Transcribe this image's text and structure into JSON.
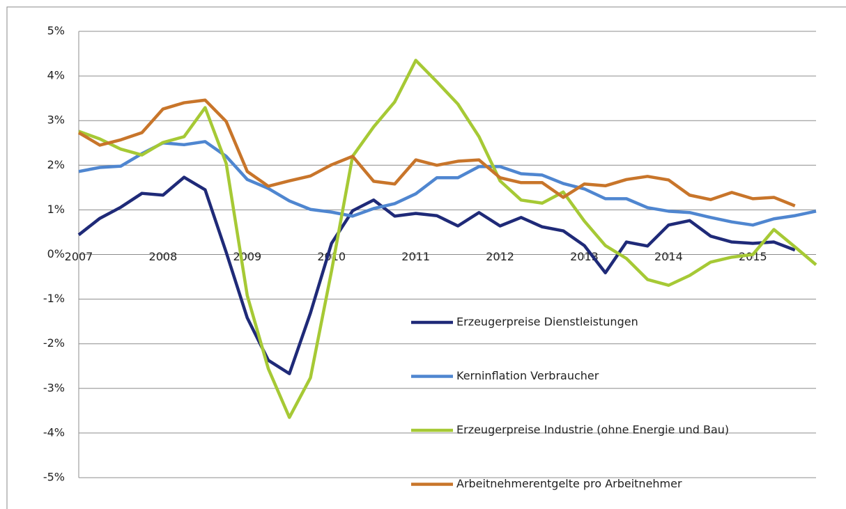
{
  "chart_data": {
    "type": "line",
    "x": [
      2007,
      2007.25,
      2007.5,
      2007.75,
      2008,
      2008.25,
      2008.5,
      2008.75,
      2009,
      2009.25,
      2009.5,
      2009.75,
      2010,
      2010.25,
      2010.5,
      2010.75,
      2011,
      2011.25,
      2011.5,
      2011.75,
      2012,
      2012.25,
      2012.5,
      2012.75,
      2013,
      2013.25,
      2013.5,
      2013.75,
      2014,
      2014.25,
      2014.5,
      2014.75,
      2015,
      2015.25,
      2015.5,
      2015.75
    ],
    "xlim": [
      2007,
      2015.75
    ],
    "xticks": [
      2007,
      2008,
      2009,
      2010,
      2011,
      2012,
      2013,
      2014,
      2015
    ],
    "ylim": [
      -5,
      5
    ],
    "yticks": [
      {
        "value": -5,
        "label": "-5%"
      },
      {
        "value": -4,
        "label": "-4%"
      },
      {
        "value": -3,
        "label": "-3%"
      },
      {
        "value": -2,
        "label": "-2%"
      },
      {
        "value": -1,
        "label": "-1%"
      },
      {
        "value": 0,
        "label": "0%"
      },
      {
        "value": 1,
        "label": "1%"
      },
      {
        "value": 2,
        "label": "2%"
      },
      {
        "value": 3,
        "label": "3%"
      },
      {
        "value": 4,
        "label": "4%"
      },
      {
        "value": 5,
        "label": "5%"
      }
    ],
    "grid": true,
    "legend": "inside-bottom",
    "series": [
      {
        "name": "Erzeugerpreise Dienstleistungen",
        "color": "#1f2a78",
        "values": [
          0.44,
          0.81,
          1.06,
          1.37,
          1.33,
          1.73,
          1.45,
          0.05,
          -1.42,
          -2.37,
          -2.67,
          -1.31,
          0.25,
          0.98,
          1.22,
          0.86,
          0.92,
          0.87,
          0.64,
          0.94,
          0.64,
          0.83,
          0.62,
          0.53,
          0.2,
          -0.41,
          0.28,
          0.19,
          0.66,
          0.76,
          0.41,
          0.28,
          0.25,
          0.28,
          0.1,
          null
        ]
      },
      {
        "name": "Kerninflation Verbraucher",
        "color": "#4f86d0",
        "values": [
          1.86,
          1.95,
          1.98,
          2.26,
          2.5,
          2.46,
          2.53,
          2.2,
          1.68,
          1.48,
          1.2,
          1.01,
          0.95,
          0.86,
          1.03,
          1.14,
          1.36,
          1.72,
          1.72,
          1.97,
          1.97,
          1.81,
          1.78,
          1.59,
          1.47,
          1.25,
          1.25,
          1.05,
          0.97,
          0.94,
          0.83,
          0.73,
          0.66,
          0.8,
          0.87,
          0.97
        ]
      },
      {
        "name": "Erzeugerpreise Industrie (ohne Energie und Bau)",
        "color": "#a6c935",
        "values": [
          2.76,
          2.59,
          2.36,
          2.23,
          2.51,
          2.64,
          3.29,
          2.04,
          -0.92,
          -2.56,
          -3.65,
          -2.76,
          -0.37,
          2.2,
          2.86,
          3.42,
          4.35,
          3.87,
          3.37,
          2.64,
          1.65,
          1.22,
          1.15,
          1.4,
          0.75,
          0.2,
          -0.09,
          -0.56,
          -0.69,
          -0.47,
          -0.17,
          -0.06,
          0,
          0.56,
          0.17,
          -0.23
        ]
      },
      {
        "name": "Arbeitnehmerentgelte pro Arbeitnehmer",
        "color": "#c8752a",
        "values": [
          2.73,
          2.45,
          2.57,
          2.73,
          3.26,
          3.4,
          3.46,
          2.98,
          1.86,
          1.53,
          1.65,
          1.76,
          2.01,
          2.2,
          1.64,
          1.58,
          2.12,
          2.0,
          2.09,
          2.12,
          1.72,
          1.61,
          1.61,
          1.28,
          1.58,
          1.54,
          1.68,
          1.75,
          1.67,
          1.33,
          1.23,
          1.39,
          1.25,
          1.28,
          1.09,
          null
        ]
      }
    ]
  }
}
